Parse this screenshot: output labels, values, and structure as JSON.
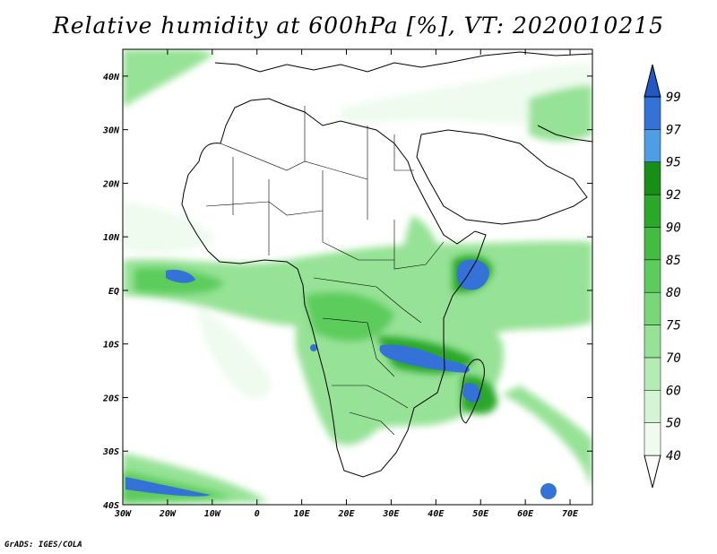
{
  "title": "Relative humidity at 600hPa [%], VT: 2020010215",
  "credit": "GrADS: IGES/COLA",
  "map": {
    "lon_range": [
      -30,
      75
    ],
    "lat_range": [
      -40,
      45
    ],
    "lon_ticks": [
      {
        "value": -30,
        "label": "30W"
      },
      {
        "value": -20,
        "label": "20W"
      },
      {
        "value": -10,
        "label": "10W"
      },
      {
        "value": 0,
        "label": "0"
      },
      {
        "value": 10,
        "label": "10E"
      },
      {
        "value": 20,
        "label": "20E"
      },
      {
        "value": 30,
        "label": "30E"
      },
      {
        "value": 40,
        "label": "40E"
      },
      {
        "value": 50,
        "label": "50E"
      },
      {
        "value": 60,
        "label": "60E"
      },
      {
        "value": 70,
        "label": "70E"
      }
    ],
    "lat_ticks": [
      {
        "value": 40,
        "label": "40N"
      },
      {
        "value": 30,
        "label": "30N"
      },
      {
        "value": 20,
        "label": "20N"
      },
      {
        "value": 10,
        "label": "10N"
      },
      {
        "value": 0,
        "label": "EQ"
      },
      {
        "value": -10,
        "label": "10S"
      },
      {
        "value": -20,
        "label": "20S"
      },
      {
        "value": -30,
        "label": "30S"
      },
      {
        "value": -40,
        "label": "40S"
      }
    ]
  },
  "colorbar": {
    "levels": [
      "40",
      "50",
      "60",
      "70",
      "75",
      "80",
      "85",
      "90",
      "92",
      "95",
      "97",
      "99"
    ],
    "colors": [
      "#eefbee",
      "#d4f5d4",
      "#b4ecb4",
      "#96e296",
      "#78d878",
      "#5ccc5c",
      "#42bd42",
      "#2aa82a",
      "#168f16",
      "#4d9ee6",
      "#3572d8",
      "#2456c4"
    ]
  },
  "colors": {
    "low": "#eefbee",
    "mid": "#96e296",
    "high": "#5ccc5c",
    "very_high": "#2aa82a",
    "saturated": "#3572d8"
  }
}
